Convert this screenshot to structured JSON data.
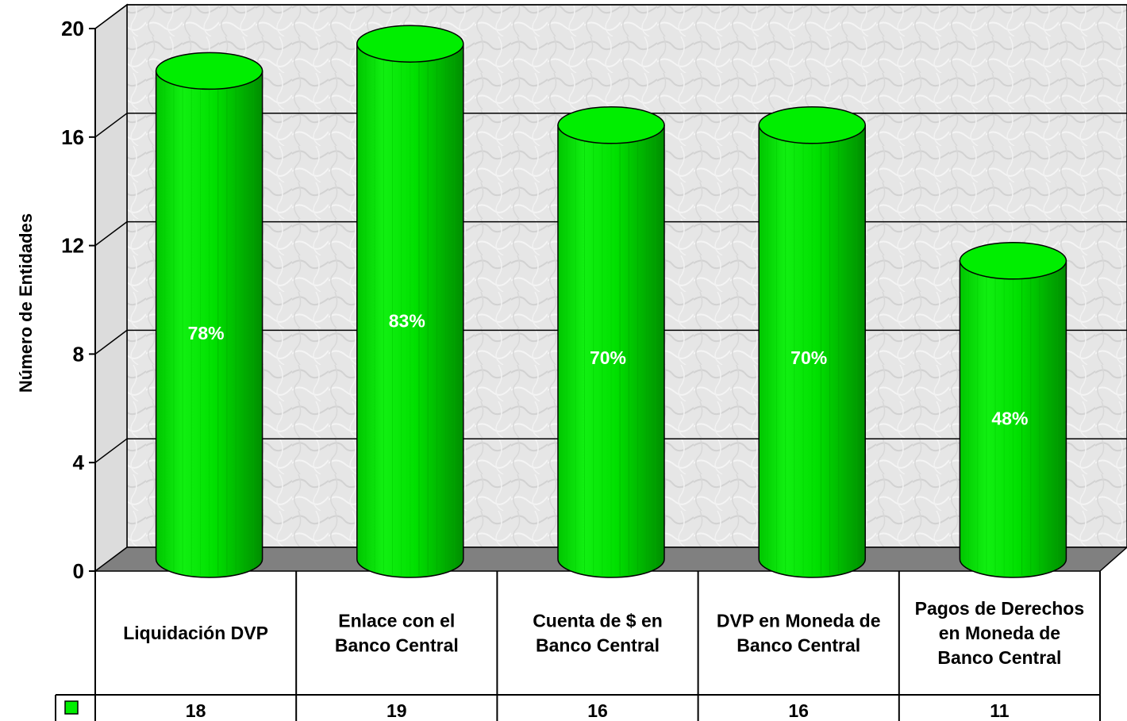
{
  "chart_data": {
    "type": "bar",
    "ylabel": "Número de Entidades",
    "ylim": [
      0,
      20
    ],
    "yticks": [
      "0",
      "4",
      "8",
      "12",
      "16",
      "20"
    ],
    "categories": [
      [
        "Liquidación DVP"
      ],
      [
        "Enlace con el",
        "Banco Central"
      ],
      [
        "Cuenta de $ en",
        "Banco Central"
      ],
      [
        "DVP en Moneda de",
        "Banco Central"
      ],
      [
        "Pagos de Derechos",
        "en Moneda de",
        "Banco Central"
      ]
    ],
    "series": [
      {
        "values": [
          18,
          19,
          16,
          16,
          11
        ],
        "color": "#00ee00"
      }
    ],
    "value_labels": [
      "18",
      "19",
      "16",
      "16",
      "11"
    ],
    "percent_labels": [
      "78%",
      "83%",
      "70%",
      "70%",
      "48%"
    ],
    "colors": {
      "bar": "#00ee00",
      "bar_dark": "#009900",
      "floor": "#808080",
      "wall": "#e4e4e4",
      "axis": "#000000"
    },
    "grid": true,
    "legend": "data-table"
  }
}
